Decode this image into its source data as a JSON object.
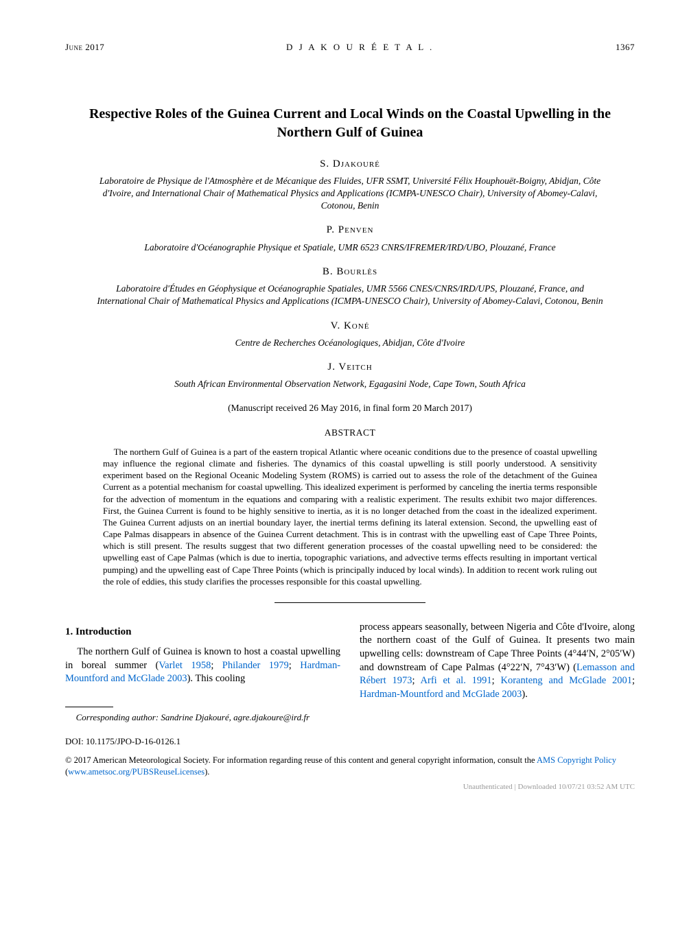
{
  "header": {
    "date": "June 2017",
    "running_authors": "D J A K O U R É  E T  A L .",
    "page_number": "1367"
  },
  "title": "Respective Roles of the Guinea Current and Local Winds on the Coastal Upwelling in the Northern Gulf of Guinea",
  "authors": [
    {
      "name": "S. Djakouré",
      "affil": "Laboratoire de Physique de l'Atmosphère et de Mécanique des Fluides, UFR SSMT, Université Félix Houphouët-Boigny, Abidjan, Côte d'Ivoire, and International Chair of Mathematical Physics and Applications (ICMPA-UNESCO Chair), University of Abomey-Calavi, Cotonou, Benin"
    },
    {
      "name": "P. Penven",
      "affil": "Laboratoire d'Océanographie Physique et Spatiale, UMR 6523 CNRS/IFREMER/IRD/UBO, Plouzané, France"
    },
    {
      "name": "B. Bourlès",
      "affil": "Laboratoire d'Études en Géophysique et Océanographie Spatiales, UMR 5566 CNES/CNRS/IRD/UPS, Plouzané, France, and International Chair of Mathematical Physics and Applications (ICMPA-UNESCO Chair), University of Abomey-Calavi, Cotonou, Benin"
    },
    {
      "name": "V. Koné",
      "affil": "Centre de Recherches Océanologiques, Abidjan, Côte d'Ivoire"
    },
    {
      "name": "J. Veitch",
      "affil": "South African Environmental Observation Network, Egagasini Node, Cape Town, South Africa"
    }
  ],
  "manuscript": "(Manuscript received 26 May 2016, in final form 20 March 2017)",
  "abstract": {
    "heading": "ABSTRACT",
    "body": "The northern Gulf of Guinea is a part of the eastern tropical Atlantic where oceanic conditions due to the presence of coastal upwelling may influence the regional climate and fisheries. The dynamics of this coastal upwelling is still poorly understood. A sensitivity experiment based on the Regional Oceanic Modeling System (ROMS) is carried out to assess the role of the detachment of the Guinea Current as a potential mechanism for coastal upwelling. This idealized experiment is performed by canceling the inertia terms responsible for the advection of momentum in the equations and comparing with a realistic experiment. The results exhibit two major differences. First, the Guinea Current is found to be highly sensitive to inertia, as it is no longer detached from the coast in the idealized experiment. The Guinea Current adjusts on an inertial boundary layer, the inertial terms defining its lateral extension. Second, the upwelling east of Cape Palmas disappears in absence of the Guinea Current detachment. This is in contrast with the upwelling east of Cape Three Points, which is still present. The results suggest that two different generation processes of the coastal upwelling need to be considered: the upwelling east of Cape Palmas (which is due to inertia, topographic variations, and advective terms effects resulting in important vertical pumping) and the upwelling east of Cape Three Points (which is principally induced by local winds). In addition to recent work ruling out the role of eddies, this study clarifies the processes responsible for this coastal upwelling."
  },
  "section1": {
    "heading": "1. Introduction",
    "left_a": "The northern Gulf of Guinea is known to host a coastal upwelling in boreal summer (",
    "left_link1": "Varlet 1958",
    "left_b": "; ",
    "left_link2": "Philander 1979",
    "left_c": "; ",
    "left_link3": "Hardman-Mountford and McGlade 2003",
    "left_d": "). This cooling",
    "right_a": "process appears seasonally, between Nigeria and Côte d'Ivoire, along the northern coast of the Gulf of Guinea. It presents two main upwelling cells: downstream of Cape Three Points (4°44′N, 2°05′W) and downstream of Cape Palmas (4°22′N, 7°43′W) (",
    "right_link1": "Lemasson and Rébert 1973",
    "right_b": "; ",
    "right_link2": "Arfi et al. 1991",
    "right_c": "; ",
    "right_link3": "Koranteng and McGlade 2001",
    "right_d": "; ",
    "right_link4": "Hardman-Mountford and McGlade 2003",
    "right_e": ")."
  },
  "footnote": {
    "label": "Corresponding author",
    "text": ": Sandrine Djakouré, agre.djakoure@ird.fr"
  },
  "doi": "DOI: 10.1175/JPO-D-16-0126.1",
  "copyright": {
    "a": "© 2017 American Meteorological Society. For information regarding reuse of this content and general copyright information, consult the ",
    "link1": "AMS Copyright Policy",
    "b": " (",
    "link2": "www.ametsoc.org/PUBSReuseLicenses",
    "c": ")."
  },
  "watermark": "Unauthenticated | Downloaded 10/07/21 03:52 AM UTC",
  "colors": {
    "text": "#000000",
    "background": "#ffffff",
    "link": "#0066cc",
    "watermark": "#9a9a9a"
  },
  "typography": {
    "body_font": "Times New Roman",
    "body_size_pt": 10.5,
    "title_size_pt": 14,
    "abstract_size_pt": 9.5,
    "author_smallcaps": true
  }
}
